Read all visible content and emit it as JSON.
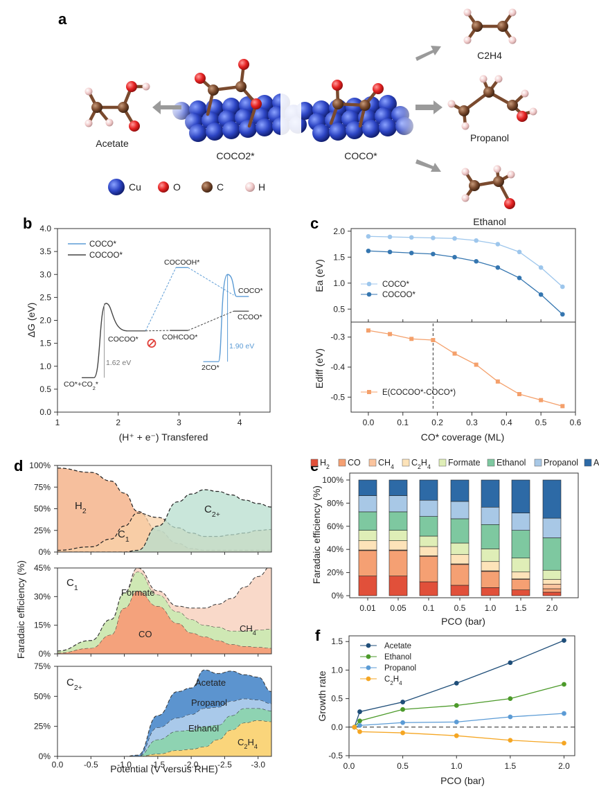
{
  "panel_labels": {
    "a": "a",
    "b": "b",
    "c": "c",
    "d": "d",
    "e": "e",
    "f": "f"
  },
  "panel_a": {
    "molecules": {
      "c2h4": "C2H4",
      "propanol": "Propanol",
      "ethanol": "Ethanol",
      "acetate": "Acetate",
      "coco2": "COCO2*",
      "coco": "COCO*"
    },
    "legend": [
      {
        "label": "Cu",
        "color": "#2d45c4"
      },
      {
        "label": "O",
        "color": "#e52222"
      },
      {
        "label": "C",
        "color": "#7a4a2e"
      },
      {
        "label": "H",
        "color": "#f0c9c9"
      }
    ]
  },
  "chart_data": [
    {
      "id": "b",
      "type": "line",
      "xlabel": "(H⁺ + e⁻) Transfered",
      "ylabel": "ΔG (eV)",
      "xlim": [
        1,
        4.5
      ],
      "ylim": [
        0,
        4
      ],
      "xticks": [
        1,
        2,
        3,
        4
      ],
      "yticks": [
        0,
        0.5,
        1.0,
        1.5,
        2.0,
        2.5,
        3.0,
        3.5,
        4.0
      ],
      "series": [
        {
          "name": "COCO*",
          "color": "#5b9bd5"
        },
        {
          "name": "COCOO*",
          "color": "#444444"
        }
      ],
      "annotations": {
        "coco_co2": "CO*+CO2*",
        "ts1": "1.62 eV",
        "cocoo": "COCOO*",
        "cocooh": "COCOOH*",
        "cohcoo": "COHCOO*",
        "twoco": "2CO*",
        "ts2": "1.90 eV",
        "coco": "COCO*",
        "ccoo": "CCOO*"
      },
      "levels": [
        {
          "x": [
            1.4,
            1.6
          ],
          "y": 0.75,
          "series": "COCOO*"
        },
        {
          "x": [
            2.15,
            2.45
          ],
          "y": 1.77,
          "series": "COCOO*"
        },
        {
          "x": [
            2.85,
            3.15
          ],
          "y": 1.78,
          "series": "COCOO*"
        },
        {
          "x": [
            3.9,
            4.15
          ],
          "y": 2.2,
          "series": "COCOO*"
        },
        {
          "x": [
            2.95,
            3.15
          ],
          "y": 3.15,
          "series": "COCO*"
        },
        {
          "x": [
            3.4,
            3.65
          ],
          "y": 1.1,
          "series": "COCO*"
        },
        {
          "x": [
            3.95,
            4.15
          ],
          "y": 2.52,
          "series": "COCO*"
        }
      ],
      "barriers": [
        {
          "x_start": 1.6,
          "x_peak": 1.8,
          "x_end": 2.15,
          "y_start": 0.75,
          "y_peak": 2.37,
          "y_end": 1.77,
          "series": "COCOO*"
        },
        {
          "x_start": 3.65,
          "x_peak": 3.8,
          "x_end": 3.95,
          "y_start": 1.1,
          "y_peak": 3.0,
          "y_end": 2.52,
          "series": "COCO*"
        }
      ],
      "forbidden_x": 2.55,
      "forbidden_y": 1.5
    },
    {
      "id": "c_top",
      "type": "line",
      "ylabel": "Ea (eV)",
      "xlim": [
        -0.05,
        0.6
      ],
      "ylim": [
        0.25,
        2.05
      ],
      "yticks": [
        0.5,
        1.0,
        1.5,
        2.0
      ],
      "x": [
        0.0,
        0.0625,
        0.125,
        0.1875,
        0.25,
        0.3125,
        0.375,
        0.4375,
        0.5,
        0.5625
      ],
      "series": [
        {
          "name": "COCO*",
          "color": "#9dc6ec",
          "values": [
            1.9,
            1.89,
            1.88,
            1.87,
            1.86,
            1.82,
            1.75,
            1.6,
            1.3,
            0.93
          ]
        },
        {
          "name": "COCOO*",
          "color": "#3576b0",
          "values": [
            1.62,
            1.6,
            1.58,
            1.56,
            1.5,
            1.42,
            1.3,
            1.1,
            0.78,
            0.4
          ]
        }
      ]
    },
    {
      "id": "c_bottom",
      "type": "line",
      "ylabel": "Ediff (eV)",
      "xlabel": "CO* coverage (ML)",
      "xlim": [
        -0.05,
        0.6
      ],
      "ylim": [
        -0.55,
        -0.25
      ],
      "yticks": [
        -0.5,
        -0.4,
        -0.3
      ],
      "xticks": [
        0.0,
        0.1,
        0.2,
        0.3,
        0.4,
        0.5,
        0.6
      ],
      "x": [
        0.0,
        0.0625,
        0.125,
        0.1875,
        0.25,
        0.3125,
        0.375,
        0.4375,
        0.5,
        0.5625
      ],
      "series": [
        {
          "name": "E(COCOO*-COCO*)",
          "color": "#f4a06b",
          "values": [
            -0.278,
            -0.29,
            -0.306,
            -0.31,
            -0.355,
            -0.392,
            -0.448,
            -0.49,
            -0.51,
            -0.53
          ]
        }
      ],
      "vline_x": 0.1875
    },
    {
      "id": "d",
      "type": "area",
      "ylabel": "Faradaic efficiency (%)",
      "xlabel": "Potential (V versus RHE)",
      "xticks": [
        "0.0",
        "-0.5",
        "-1.0",
        "-1.5",
        "-2.0",
        "-2.5",
        "-3.0"
      ],
      "x": [
        0,
        -0.5,
        -0.8,
        -1.0,
        -1.2,
        -1.5,
        -1.8,
        -2.0,
        -2.2,
        -2.4,
        -2.6,
        -2.8,
        -3.0,
        -3.2
      ],
      "subplots": [
        {
          "name": "total",
          "ylim": [
            0,
            100
          ],
          "yticks": [
            "0%",
            "25%",
            "50%",
            "75%",
            "100%"
          ],
          "series": [
            {
              "name": "H2",
              "color": "#f3a97c",
              "values": [
                97,
                92,
                82,
                68,
                47,
                25,
                10,
                4,
                2,
                2,
                2,
                2,
                2,
                2
              ]
            },
            {
              "name": "C1",
              "color": "#f8d1a9",
              "values": [
                2,
                6,
                15,
                30,
                45,
                40,
                28,
                22,
                18,
                18,
                20,
                22,
                25,
                26
              ]
            },
            {
              "name": "C2+",
              "color": "#b7ddcd",
              "values": [
                0,
                0,
                0,
                0,
                2,
                30,
                58,
                67,
                72,
                70,
                66,
                60,
                56,
                52
              ]
            }
          ]
        },
        {
          "name": "C1",
          "ylim": [
            0,
            45
          ],
          "yticks": [
            "0%",
            "15%",
            "30%",
            "45%"
          ],
          "series": [
            {
              "name": "CO",
              "color": "#f4a27c",
              "values": [
                0.5,
                3,
                10,
                24,
                33,
                25,
                16,
                11,
                9,
                7,
                5,
                4,
                3.5,
                3
              ]
            },
            {
              "name": "Formate",
              "color": "#cfe8b4",
              "values": [
                1,
                4,
                8,
                8,
                10,
                6,
                6,
                7,
                6,
                7,
                7,
                8,
                9,
                10
              ]
            },
            {
              "name": "CH4",
              "color": "#f9d9c9",
              "values": [
                0,
                0,
                0,
                0,
                2,
                2,
                3,
                6,
                9,
                12,
                17,
                23,
                28,
                33
              ]
            }
          ]
        },
        {
          "name": "C2+",
          "ylim": [
            0,
            75
          ],
          "yticks": [
            "0%",
            "25%",
            "50%",
            "75%"
          ],
          "series": [
            {
              "name": "C2H4",
              "color": "#fad57b",
              "values": [
                0,
                0,
                0,
                0,
                0,
                2,
                5,
                6,
                8,
                14,
                22,
                28,
                30,
                29
              ]
            },
            {
              "name": "Ethanol",
              "color": "#8ed3b2",
              "values": [
                0,
                0,
                0,
                0,
                0,
                12,
                16,
                16,
                17,
                12,
                12,
                12,
                10,
                9
              ]
            },
            {
              "name": "Propanol",
              "color": "#a9c9ea",
              "values": [
                0,
                0,
                0,
                0,
                0,
                10,
                11,
                13,
                15,
                15,
                12,
                8,
                7,
                6
              ]
            },
            {
              "name": "Acetate",
              "color": "#5c94cf",
              "values": [
                0,
                0,
                0,
                0,
                1,
                10,
                22,
                22,
                32,
                28,
                25,
                20,
                19,
                10
              ]
            }
          ]
        }
      ],
      "labels": {
        "h2": "H2",
        "c1": "C1",
        "c2": "C2+",
        "formate": "Formate",
        "co": "CO",
        "ch4": "CH4",
        "acetate": "Acetate",
        "propanol": "Propanol",
        "ethanol": "Ethanol",
        "c2h4": "C2H4"
      }
    },
    {
      "id": "e",
      "type": "bar",
      "stacked": true,
      "ylabel": "Faradaic efficiency (%)",
      "xlabel": "PCO (bar)",
      "categories": [
        "0.01",
        "0.05",
        "0.1",
        "0.5",
        "1.0",
        "1.5",
        "2.0"
      ],
      "ylim": [
        0,
        100
      ],
      "yticks": [
        "0%",
        "20%",
        "40%",
        "60%",
        "80%",
        "100%"
      ],
      "series": [
        {
          "name": "H2",
          "color": "#e1503a",
          "values": [
            17,
            17,
            12,
            9,
            7,
            5,
            3
          ]
        },
        {
          "name": "CO",
          "color": "#f5a073",
          "values": [
            22,
            22,
            22,
            18,
            14,
            9,
            3
          ]
        },
        {
          "name": "CH4",
          "color": "#fbc49e",
          "values": [
            0.5,
            0.5,
            0.5,
            0.5,
            0.5,
            0.5,
            4
          ]
        },
        {
          "name": "C2H4",
          "color": "#fde3b9",
          "values": [
            8,
            8,
            8,
            8,
            8,
            6,
            4
          ]
        },
        {
          "name": "Formate",
          "color": "#dfeeb7",
          "values": [
            9,
            9,
            9,
            10,
            11,
            12,
            8
          ]
        },
        {
          "name": "Ethanol",
          "color": "#7ec8a0",
          "values": [
            16,
            16,
            17,
            21,
            21,
            24,
            28
          ]
        },
        {
          "name": "Propanol",
          "color": "#a8c8e6",
          "values": [
            14,
            14,
            14,
            15,
            15,
            15,
            17
          ]
        },
        {
          "name": "Acetate",
          "color": "#2d6aa6",
          "values": [
            13.5,
            13.5,
            17.5,
            18.5,
            23.5,
            28.5,
            33
          ]
        }
      ]
    },
    {
      "id": "f",
      "type": "line",
      "ylabel": "Growth rate",
      "xlabel": "PCO (bar)",
      "xlim": [
        0,
        2.1
      ],
      "ylim": [
        -0.5,
        1.6
      ],
      "xticks": [
        "0.0",
        "0.5",
        "1.0",
        "1.5",
        "2.0"
      ],
      "yticks": [
        "-0.5",
        "0.0",
        "0.5",
        "1.0",
        "1.5"
      ],
      "x": [
        0.05,
        0.1,
        0.5,
        1.0,
        1.5,
        2.0
      ],
      "series": [
        {
          "name": "Acetate",
          "color": "#1f4e79",
          "values": [
            0,
            0.27,
            0.44,
            0.77,
            1.13,
            1.52
          ]
        },
        {
          "name": "Ethanol",
          "color": "#4c9a2a",
          "values": [
            0,
            0.11,
            0.31,
            0.38,
            0.5,
            0.75
          ]
        },
        {
          "name": "Propanol",
          "color": "#5b9bd5",
          "values": [
            0,
            0.03,
            0.08,
            0.09,
            0.18,
            0.24
          ]
        },
        {
          "name": "C2H4",
          "color": "#f5a623",
          "values": [
            0,
            -0.08,
            -0.1,
            -0.15,
            -0.23,
            -0.28
          ]
        }
      ]
    }
  ]
}
